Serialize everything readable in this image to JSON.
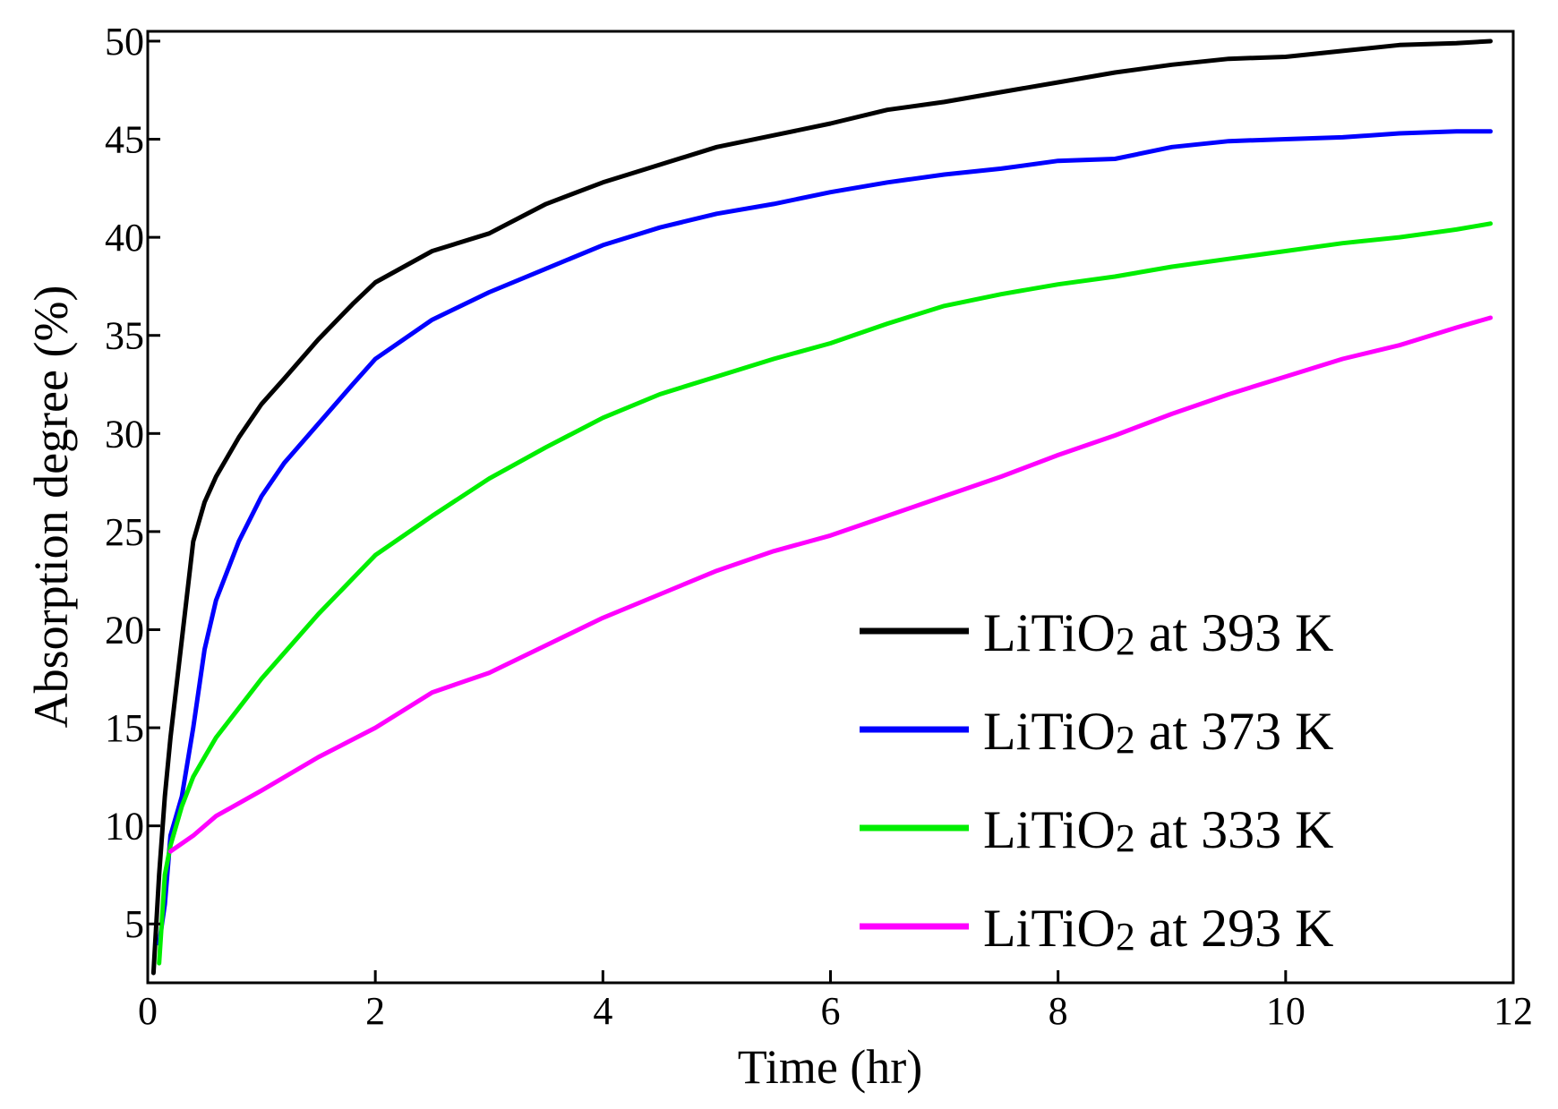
{
  "chart_data": {
    "type": "line",
    "title": "",
    "xlabel": "Time (hr)",
    "ylabel": "Absorption degree (%)",
    "xlim": [
      0,
      12
    ],
    "ylim": [
      2,
      50.5
    ],
    "xticks": [
      0,
      2,
      4,
      6,
      8,
      10,
      12
    ],
    "yticks": [
      5,
      10,
      15,
      20,
      25,
      30,
      35,
      40,
      45,
      50
    ],
    "grid": false,
    "legend_position": "bottom-right",
    "series": [
      {
        "name": "LiTiO2 at 393 K",
        "label_main": "LiTiO",
        "label_sub": "2",
        "label_rest": " at 393 K",
        "color": "#000000",
        "x": [
          0.05,
          0.1,
          0.15,
          0.2,
          0.3,
          0.4,
          0.5,
          0.6,
          0.7,
          0.8,
          1.0,
          1.2,
          1.5,
          1.8,
          2.0,
          2.5,
          3.0,
          3.5,
          4.0,
          4.5,
          5.0,
          5.5,
          6.0,
          6.5,
          7.0,
          7.5,
          8.0,
          8.5,
          9.0,
          9.5,
          10.0,
          10.5,
          11.0,
          11.5,
          11.8
        ],
        "y": [
          2.5,
          7.5,
          11.5,
          14.5,
          19.5,
          24.5,
          26.5,
          27.8,
          28.8,
          29.8,
          31.5,
          32.8,
          34.8,
          36.6,
          37.7,
          39.3,
          40.2,
          41.7,
          42.8,
          43.7,
          44.6,
          45.2,
          45.8,
          46.5,
          46.9,
          47.4,
          47.9,
          48.4,
          48.8,
          49.1,
          49.2,
          49.5,
          49.8,
          49.9,
          50.0
        ]
      },
      {
        "name": "LiTiO2 at 373 K",
        "label_main": "LiTiO",
        "label_sub": "2",
        "label_rest": " at 373 K",
        "color": "#0000ff",
        "x": [
          0.1,
          0.15,
          0.2,
          0.3,
          0.4,
          0.5,
          0.6,
          0.7,
          0.8,
          1.0,
          1.2,
          1.5,
          1.8,
          2.0,
          2.5,
          3.0,
          3.5,
          4.0,
          4.5,
          5.0,
          5.5,
          6.0,
          6.5,
          7.0,
          7.5,
          8.0,
          8.5,
          9.0,
          9.5,
          10.0,
          10.5,
          11.0,
          11.5,
          11.8
        ],
        "y": [
          4.0,
          6.0,
          9.5,
          11.5,
          15.0,
          19.0,
          21.5,
          23.0,
          24.5,
          26.8,
          28.5,
          30.5,
          32.5,
          33.8,
          35.8,
          37.2,
          38.4,
          39.6,
          40.5,
          41.2,
          41.7,
          42.3,
          42.8,
          43.2,
          43.5,
          43.9,
          44.0,
          44.6,
          44.9,
          45.0,
          45.1,
          45.3,
          45.4,
          45.4
        ]
      },
      {
        "name": "LiTiO2 at 333 K",
        "label_main": "LiTiO",
        "label_sub": "2",
        "label_rest": " at 333 K",
        "color": "#00ee00",
        "x": [
          0.1,
          0.15,
          0.2,
          0.3,
          0.4,
          0.5,
          0.6,
          0.8,
          1.0,
          1.5,
          2.0,
          2.5,
          3.0,
          3.5,
          4.0,
          4.5,
          5.0,
          5.5,
          6.0,
          6.5,
          7.0,
          7.5,
          8.0,
          8.5,
          9.0,
          9.5,
          10.0,
          10.5,
          11.0,
          11.5,
          11.8
        ],
        "y": [
          3.0,
          7.5,
          9.0,
          11.0,
          12.5,
          13.5,
          14.5,
          16.0,
          17.5,
          20.8,
          23.8,
          25.8,
          27.7,
          29.3,
          30.8,
          32.0,
          32.9,
          33.8,
          34.6,
          35.6,
          36.5,
          37.1,
          37.6,
          38.0,
          38.5,
          38.9,
          39.3,
          39.7,
          40.0,
          40.4,
          40.7
        ]
      },
      {
        "name": "LiTiO2 at 293 K",
        "label_main": "LiTiO",
        "label_sub": "2",
        "label_rest": " at 293 K",
        "color": "#ff00ff",
        "x": [
          0.2,
          0.4,
          0.6,
          1.0,
          1.5,
          2.0,
          2.5,
          3.0,
          3.5,
          4.0,
          4.5,
          5.0,
          5.5,
          6.0,
          6.5,
          7.0,
          7.5,
          8.0,
          8.5,
          9.0,
          9.5,
          10.0,
          10.5,
          11.0,
          11.5,
          11.8
        ],
        "y": [
          8.7,
          9.5,
          10.5,
          11.8,
          13.5,
          15.0,
          16.8,
          17.8,
          19.2,
          20.6,
          21.8,
          23.0,
          24.0,
          24.8,
          25.8,
          26.8,
          27.8,
          28.9,
          29.9,
          31.0,
          32.0,
          32.9,
          33.8,
          34.5,
          35.4,
          35.9
        ]
      }
    ]
  }
}
